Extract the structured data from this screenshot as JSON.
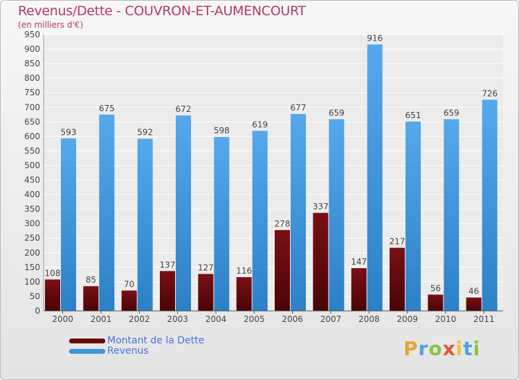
{
  "title": "Revenus/Dette - COUVRON-ET-AUMENCOURT",
  "subtitle": "(en milliers d'€)",
  "colors": {
    "dette": "#6b0a0a",
    "revenus": "#3d95dc",
    "accent": "#b33a5e",
    "legend_text": "#4a6fe0"
  },
  "legend": [
    {
      "label": "Montant de la Dette",
      "color": "#6b0a0a"
    },
    {
      "label": "Revenus",
      "color": "#3d95dc"
    }
  ],
  "logo": {
    "text": "Proxiti"
  },
  "chart_data": {
    "type": "bar",
    "categories": [
      "2000",
      "2001",
      "2002",
      "2003",
      "2004",
      "2005",
      "2006",
      "2007",
      "2008",
      "2009",
      "2010",
      "2011"
    ],
    "series": [
      {
        "name": "Montant de la Dette",
        "values": [
          108,
          85,
          70,
          137,
          127,
          116,
          278,
          337,
          147,
          217,
          56,
          46
        ]
      },
      {
        "name": "Revenus",
        "values": [
          593,
          675,
          592,
          672,
          598,
          619,
          677,
          659,
          916,
          651,
          659,
          726
        ]
      }
    ],
    "yticks": [
      "0",
      "50",
      "100",
      "150",
      "200",
      "250",
      "300",
      "350",
      "400",
      "450",
      "500",
      "550",
      "600",
      "650",
      "700",
      "750",
      "800",
      "850",
      "900",
      "950"
    ],
    "ylim": [
      0,
      950
    ],
    "grid": true,
    "legend_position": "bottom-left"
  }
}
